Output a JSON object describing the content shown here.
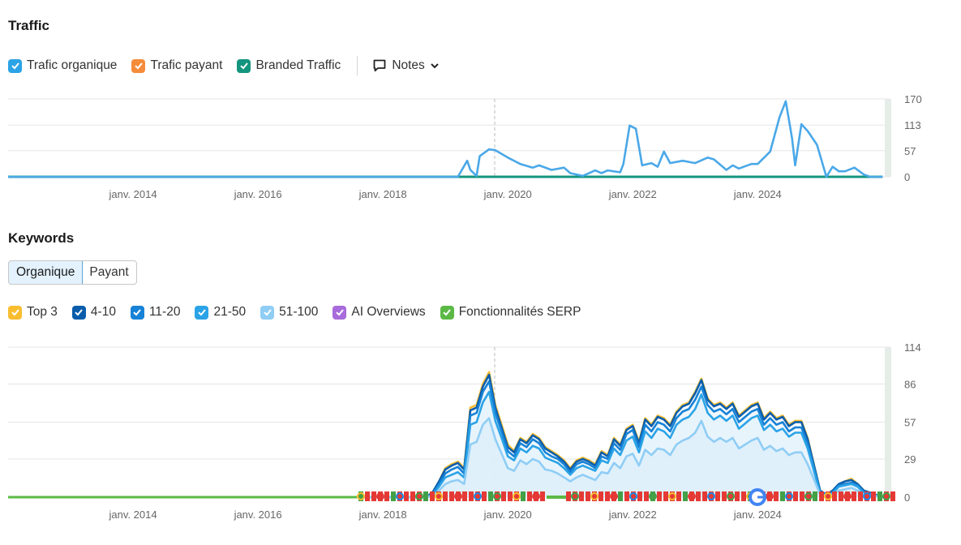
{
  "traffic": {
    "title": "Traffic",
    "legend": [
      {
        "label": "Trafic organique",
        "color": "#2ba3e6"
      },
      {
        "label": "Trafic payant",
        "color": "#f58c3b"
      },
      {
        "label": "Branded Traffic",
        "color": "#14957f"
      }
    ],
    "notes_label": "Notes"
  },
  "keywords": {
    "title": "Keywords",
    "tabs": [
      "Organique",
      "Payant"
    ],
    "legend": [
      {
        "label": "Top 3",
        "color": "#f9bd2f"
      },
      {
        "label": "4-10",
        "color": "#0a5dab"
      },
      {
        "label": "11-20",
        "color": "#1782d6"
      },
      {
        "label": "21-50",
        "color": "#2ba3e6"
      },
      {
        "label": "51-100",
        "color": "#8fcdf5"
      },
      {
        "label": "AI Overviews",
        "color": "#a86bdb"
      },
      {
        "label": "Fonctionnalités SERP",
        "color": "#5cb946"
      }
    ]
  },
  "chart_data": [
    {
      "type": "line",
      "title": "Traffic",
      "xlabel": "",
      "ylabel": "",
      "xlim": [
        2012.0,
        2026.1
      ],
      "ylim": [
        0,
        170
      ],
      "yticks": [
        0,
        57,
        113,
        170
      ],
      "xticks": [
        {
          "x": 2014,
          "label": "janv. 2014"
        },
        {
          "x": 2016,
          "label": "janv. 2016"
        },
        {
          "x": 2018,
          "label": "janv. 2018"
        },
        {
          "x": 2020,
          "label": "janv. 2020"
        },
        {
          "x": 2022,
          "label": "janv. 2022"
        },
        {
          "x": 2024,
          "label": "janv. 2024"
        }
      ],
      "series": [
        {
          "name": "Trafic organique",
          "color": "#4aa8e8",
          "x": [
            2012.0,
            2019.0,
            2019.2,
            2019.35,
            2019.4,
            2019.5,
            2019.55,
            2019.7,
            2019.8,
            2020.0,
            2020.2,
            2020.4,
            2020.5,
            2020.7,
            2020.9,
            2021.0,
            2021.2,
            2021.4,
            2021.5,
            2021.6,
            2021.8,
            2021.85,
            2021.95,
            2022.05,
            2022.15,
            2022.3,
            2022.4,
            2022.5,
            2022.6,
            2022.8,
            2023.0,
            2023.2,
            2023.3,
            2023.5,
            2023.6,
            2023.7,
            2023.9,
            2024.0,
            2024.2,
            2024.35,
            2024.45,
            2024.55,
            2024.6,
            2024.7,
            2024.8,
            2024.95,
            2025.1,
            2025.2,
            2025.3,
            2025.4,
            2025.55,
            2025.7,
            2025.8,
            2026.0
          ],
          "values": [
            0,
            0,
            0,
            35,
            15,
            2,
            45,
            60,
            58,
            42,
            28,
            20,
            25,
            15,
            20,
            8,
            2,
            14,
            8,
            14,
            10,
            28,
            112,
            105,
            25,
            30,
            22,
            55,
            30,
            35,
            30,
            42,
            38,
            15,
            25,
            18,
            28,
            28,
            55,
            130,
            165,
            85,
            25,
            115,
            100,
            70,
            0,
            22,
            12,
            12,
            20,
            5,
            0,
            0
          ]
        },
        {
          "name": "Branded Traffic",
          "color": "#14957f",
          "x": [
            2012.0,
            2026.0
          ],
          "values": [
            0,
            0
          ]
        }
      ]
    },
    {
      "type": "area",
      "title": "Keywords",
      "xlabel": "",
      "ylabel": "",
      "xlim": [
        2012.0,
        2026.1
      ],
      "ylim": [
        0,
        114
      ],
      "yticks": [
        0,
        29,
        57,
        86,
        114
      ],
      "xticks": [
        {
          "x": 2014,
          "label": "janv. 2014"
        },
        {
          "x": 2016,
          "label": "janv. 2016"
        },
        {
          "x": 2018,
          "label": "janv. 2018"
        },
        {
          "x": 2020,
          "label": "janv. 2020"
        },
        {
          "x": 2022,
          "label": "janv. 2022"
        },
        {
          "x": 2024,
          "label": "janv. 2024"
        }
      ],
      "x": [
        2012.0,
        2018.7,
        2018.8,
        2018.9,
        2019.0,
        2019.1,
        2019.2,
        2019.3,
        2019.4,
        2019.5,
        2019.6,
        2019.7,
        2019.8,
        2019.9,
        2020.0,
        2020.1,
        2020.2,
        2020.3,
        2020.4,
        2020.5,
        2020.6,
        2020.7,
        2020.8,
        2020.9,
        2021.0,
        2021.1,
        2021.2,
        2021.3,
        2021.4,
        2021.5,
        2021.6,
        2021.7,
        2021.8,
        2021.9,
        2022.0,
        2022.1,
        2022.2,
        2022.3,
        2022.4,
        2022.5,
        2022.6,
        2022.7,
        2022.8,
        2022.9,
        2023.0,
        2023.1,
        2023.2,
        2023.3,
        2023.4,
        2023.5,
        2023.6,
        2023.7,
        2023.8,
        2023.9,
        2024.0,
        2024.1,
        2024.2,
        2024.3,
        2024.4,
        2024.5,
        2024.6,
        2024.7,
        2024.8,
        2025.0,
        2025.1,
        2025.2,
        2025.3,
        2025.4,
        2025.5,
        2025.6,
        2025.7,
        2026.0
      ],
      "series": [
        {
          "name": "Top 3",
          "color": "#f9bd2f",
          "values": [
            0,
            0,
            4,
            12,
            22,
            25,
            27,
            22,
            68,
            70,
            86,
            95,
            70,
            55,
            40,
            35,
            45,
            42,
            48,
            45,
            38,
            35,
            32,
            28,
            22,
            28,
            30,
            28,
            25,
            35,
            32,
            45,
            40,
            52,
            55,
            42,
            60,
            55,
            62,
            60,
            55,
            65,
            70,
            72,
            80,
            90,
            75,
            70,
            72,
            68,
            72,
            62,
            66,
            70,
            72,
            60,
            65,
            60,
            62,
            55,
            58,
            58,
            45,
            5,
            2,
            5,
            10,
            12,
            14,
            10,
            5,
            0
          ]
        },
        {
          "name": "4-10",
          "color": "#0a5dab",
          "values": [
            0,
            0,
            4,
            12,
            21,
            24,
            26,
            21,
            66,
            68,
            84,
            93,
            68,
            53,
            38,
            34,
            44,
            41,
            47,
            44,
            37,
            34,
            31,
            27,
            21,
            27,
            29,
            27,
            24,
            34,
            31,
            44,
            39,
            51,
            54,
            41,
            59,
            54,
            61,
            59,
            54,
            64,
            69,
            71,
            79,
            89,
            74,
            69,
            71,
            67,
            71,
            61,
            65,
            69,
            71,
            59,
            64,
            59,
            61,
            54,
            57,
            57,
            44,
            5,
            2,
            5,
            10,
            12,
            13,
            10,
            5,
            0
          ]
        },
        {
          "name": "11-20",
          "color": "#1782d6",
          "values": [
            0,
            0,
            3,
            10,
            18,
            21,
            23,
            18,
            62,
            64,
            80,
            88,
            64,
            50,
            35,
            31,
            41,
            38,
            44,
            41,
            34,
            31,
            29,
            25,
            19,
            25,
            27,
            25,
            22,
            31,
            29,
            41,
            36,
            48,
            51,
            38,
            55,
            50,
            57,
            55,
            50,
            60,
            65,
            67,
            74,
            84,
            70,
            65,
            67,
            63,
            67,
            57,
            61,
            65,
            67,
            55,
            60,
            55,
            57,
            50,
            53,
            53,
            41,
            4,
            2,
            4,
            9,
            10,
            11,
            9,
            4,
            0
          ]
        },
        {
          "name": "21-50",
          "color": "#2ba3e6",
          "values": [
            0,
            0,
            2,
            8,
            15,
            17,
            19,
            15,
            55,
            57,
            72,
            80,
            58,
            45,
            31,
            28,
            37,
            34,
            39,
            37,
            30,
            28,
            26,
            22,
            17,
            22,
            24,
            22,
            20,
            28,
            26,
            37,
            32,
            43,
            46,
            34,
            50,
            45,
            52,
            50,
            45,
            55,
            59,
            61,
            67,
            78,
            64,
            59,
            62,
            58,
            62,
            52,
            56,
            60,
            62,
            51,
            55,
            50,
            52,
            46,
            49,
            49,
            37,
            3,
            1,
            3,
            8,
            9,
            10,
            8,
            3,
            0
          ]
        },
        {
          "name": "51-100",
          "color": "#8fcdf5",
          "values": [
            0,
            0,
            1,
            5,
            10,
            12,
            13,
            10,
            40,
            42,
            55,
            60,
            44,
            33,
            22,
            20,
            28,
            25,
            29,
            27,
            21,
            20,
            18,
            15,
            12,
            15,
            17,
            15,
            13,
            19,
            18,
            26,
            22,
            31,
            33,
            24,
            36,
            32,
            37,
            36,
            32,
            40,
            43,
            45,
            49,
            58,
            46,
            42,
            45,
            42,
            45,
            37,
            40,
            43,
            45,
            36,
            39,
            35,
            37,
            32,
            34,
            34,
            25,
            2,
            1,
            2,
            5,
            6,
            7,
            5,
            2,
            0
          ]
        }
      ]
    }
  ]
}
